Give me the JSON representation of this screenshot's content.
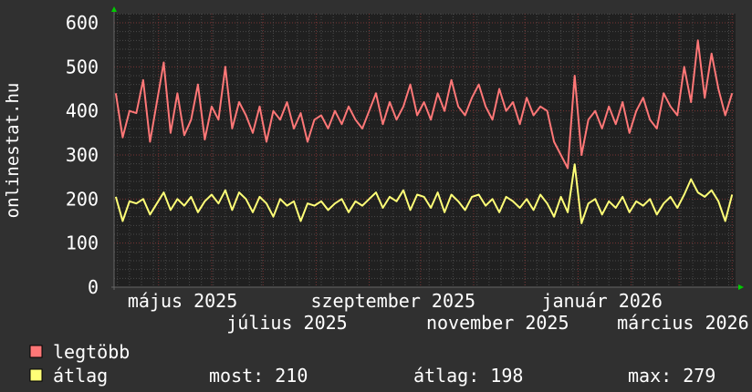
{
  "chart_data": {
    "type": "line",
    "title": "",
    "ylabel": "onlinestat.hu",
    "xlabel": "",
    "ylim": [
      0,
      600
    ],
    "xlim": [
      "2025-04-05",
      "2026-04-03"
    ],
    "yticks": [
      "0",
      "100",
      "200",
      "300",
      "400",
      "500",
      "600"
    ],
    "xticks": [
      {
        "label": "május 2025",
        "date": "2025-05-15"
      },
      {
        "label": "július 2025",
        "date": "2025-07-15"
      },
      {
        "label": "szeptember 2025",
        "date": "2025-09-15"
      },
      {
        "label": "november 2025",
        "date": "2025-11-15"
      },
      {
        "label": "január 2026",
        "date": "2026-01-15"
      },
      {
        "label": "március 2026",
        "date": "2026-03-15"
      }
    ],
    "grid": true,
    "background_color": "#303030",
    "plot_background_color": "#202020",
    "x": [
      "2025-04-06",
      "2025-04-10",
      "2025-04-14",
      "2025-04-18",
      "2025-04-22",
      "2025-04-26",
      "2025-04-30",
      "2025-05-04",
      "2025-05-08",
      "2025-05-12",
      "2025-05-16",
      "2025-05-20",
      "2025-05-24",
      "2025-05-28",
      "2025-06-01",
      "2025-06-05",
      "2025-06-09",
      "2025-06-13",
      "2025-06-17",
      "2025-06-21",
      "2025-06-25",
      "2025-06-29",
      "2025-07-03",
      "2025-07-07",
      "2025-07-11",
      "2025-07-15",
      "2025-07-19",
      "2025-07-23",
      "2025-07-27",
      "2025-07-31",
      "2025-08-04",
      "2025-08-08",
      "2025-08-12",
      "2025-08-16",
      "2025-08-20",
      "2025-08-24",
      "2025-08-28",
      "2025-09-01",
      "2025-09-05",
      "2025-09-09",
      "2025-09-13",
      "2025-09-17",
      "2025-09-21",
      "2025-09-25",
      "2025-09-29",
      "2025-10-03",
      "2025-10-07",
      "2025-10-11",
      "2025-10-15",
      "2025-10-19",
      "2025-10-23",
      "2025-10-27",
      "2025-10-31",
      "2025-11-04",
      "2025-11-08",
      "2025-11-12",
      "2025-11-16",
      "2025-11-20",
      "2025-11-24",
      "2025-11-28",
      "2025-12-02",
      "2025-12-06",
      "2025-12-10",
      "2025-12-14",
      "2025-12-18",
      "2025-12-22",
      "2025-12-26",
      "2025-12-30",
      "2026-01-03",
      "2026-01-07",
      "2026-01-11",
      "2026-01-15",
      "2026-01-19",
      "2026-01-23",
      "2026-01-27",
      "2026-01-31",
      "2026-02-04",
      "2026-02-08",
      "2026-02-12",
      "2026-02-16",
      "2026-02-20",
      "2026-02-24",
      "2026-02-28",
      "2026-03-04",
      "2026-03-08",
      "2026-03-12",
      "2026-03-16",
      "2026-03-20",
      "2026-03-24",
      "2026-03-28",
      "2026-04-01"
    ],
    "series": [
      {
        "name": "legtöbb",
        "color": "#ff7777",
        "values": [
          440,
          340,
          400,
          395,
          470,
          330,
          420,
          510,
          350,
          440,
          345,
          380,
          460,
          335,
          410,
          380,
          500,
          360,
          420,
          390,
          350,
          410,
          330,
          400,
          380,
          420,
          360,
          395,
          330,
          380,
          390,
          360,
          400,
          370,
          410,
          380,
          360,
          400,
          440,
          370,
          420,
          380,
          410,
          460,
          390,
          420,
          380,
          440,
          400,
          470,
          410,
          390,
          430,
          460,
          410,
          380,
          450,
          400,
          420,
          370,
          430,
          390,
          410,
          400,
          330,
          300,
          270,
          480,
          300,
          380,
          400,
          360,
          410,
          370,
          420,
          350,
          400,
          430,
          380,
          360,
          440,
          410,
          390,
          500,
          420,
          560,
          430,
          530,
          450,
          390,
          440
        ]
      },
      {
        "name": "átlag",
        "color": "#ffff77",
        "values": [
          205,
          150,
          195,
          190,
          200,
          165,
          190,
          215,
          175,
          200,
          185,
          205,
          170,
          195,
          210,
          190,
          220,
          175,
          215,
          200,
          170,
          205,
          190,
          160,
          200,
          185,
          195,
          150,
          190,
          185,
          195,
          175,
          190,
          200,
          170,
          195,
          185,
          200,
          215,
          180,
          205,
          195,
          220,
          175,
          210,
          205,
          180,
          215,
          170,
          210,
          195,
          175,
          205,
          210,
          185,
          200,
          170,
          205,
          195,
          180,
          200,
          175,
          210,
          190,
          160,
          205,
          170,
          279,
          145,
          190,
          200,
          165,
          195,
          180,
          205,
          170,
          195,
          185,
          200,
          165,
          190,
          205,
          180,
          210,
          245,
          215,
          205,
          220,
          195,
          150,
          210
        ]
      }
    ],
    "legend": {
      "placement": "bottom-left",
      "items": [
        {
          "label": "legtöbb",
          "color": "#ff7777"
        },
        {
          "label": "átlag",
          "color": "#ffff77"
        }
      ],
      "stats": {
        "most": "most: 210",
        "atlag": "átlag: 198",
        "max": "max: 279"
      }
    }
  }
}
